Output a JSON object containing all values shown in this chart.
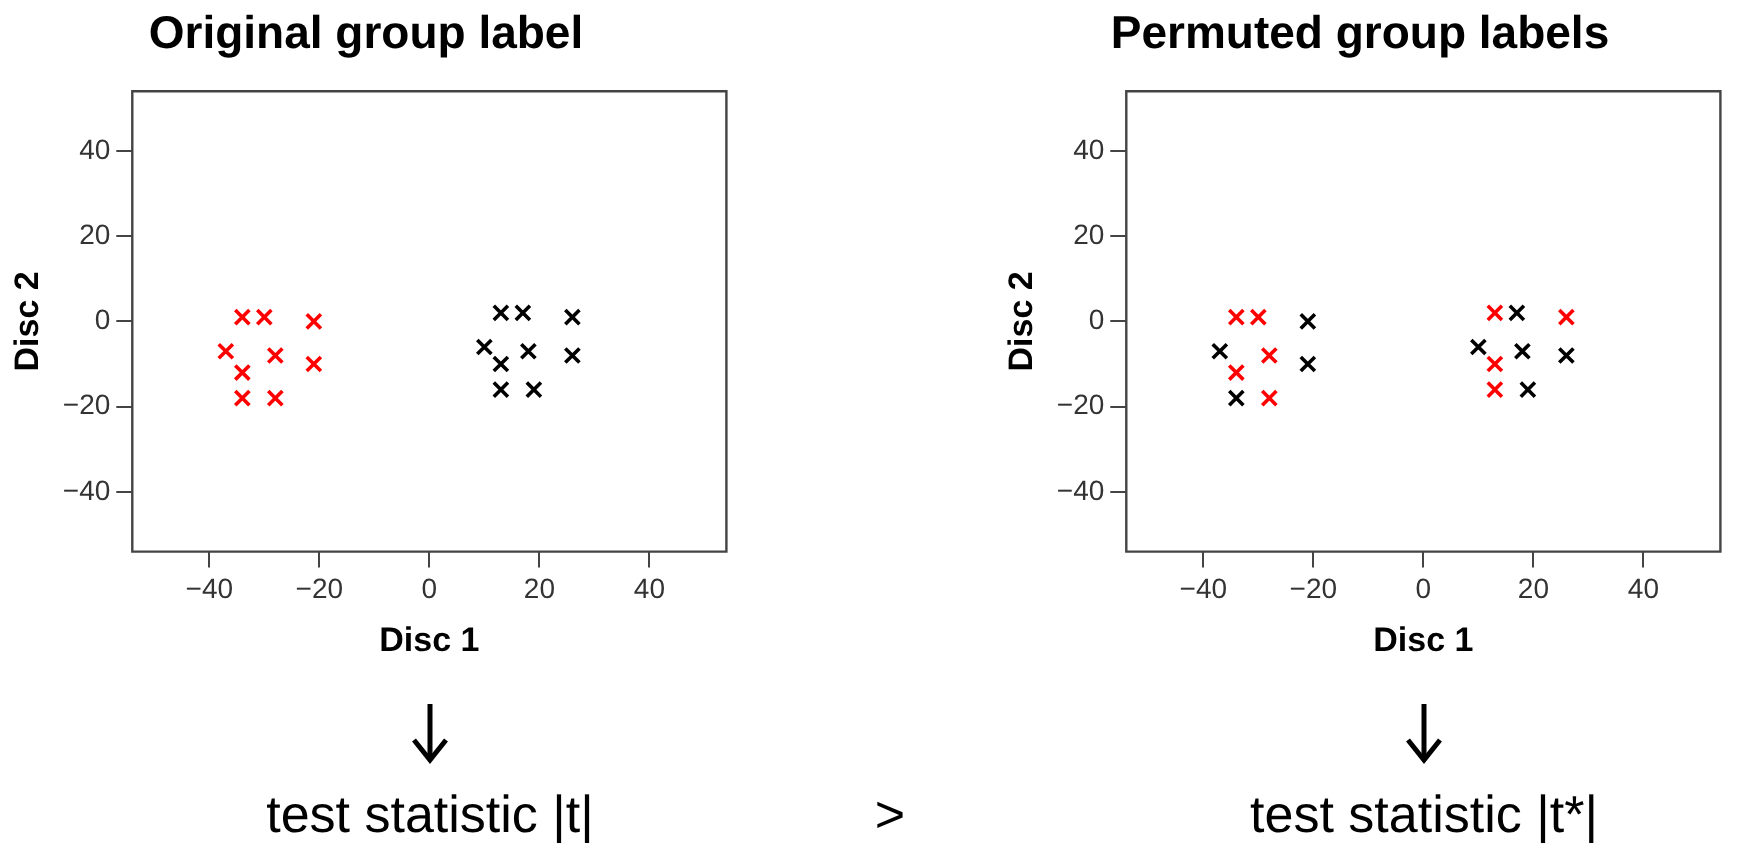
{
  "chart_data": [
    {
      "type": "scatter",
      "title": "Original group label",
      "xlabel": "Disc 1",
      "ylabel": "Disc 2",
      "xlim": [
        -54,
        54
      ],
      "ylim": [
        -54,
        54
      ],
      "xticks": [
        -40,
        -20,
        0,
        20,
        40
      ],
      "yticks": [
        -40,
        -20,
        0,
        20,
        40
      ],
      "marker": "cross",
      "grid": false,
      "legend": false,
      "series": [
        {
          "color": "#ff0000",
          "x": [
            -34,
            -30,
            -21,
            -37,
            -28,
            -21,
            -34,
            -34,
            -28
          ],
          "values": [
            1,
            1,
            0,
            -7,
            -8,
            -10,
            -12,
            -18,
            -18
          ]
        },
        {
          "color": "#000000",
          "x": [
            13,
            17,
            26,
            10,
            18,
            26,
            13,
            13,
            19
          ],
          "values": [
            2,
            2,
            1,
            -6,
            -7,
            -8,
            -10,
            -16,
            -16
          ]
        }
      ],
      "annotations": [
        "test statistic |t|",
        ">"
      ]
    },
    {
      "type": "scatter",
      "title": "Permuted group labels",
      "xlabel": "Disc 1",
      "ylabel": "Disc 2",
      "xlim": [
        -54,
        54
      ],
      "ylim": [
        -54,
        54
      ],
      "xticks": [
        -40,
        -20,
        0,
        20,
        40
      ],
      "yticks": [
        -40,
        -20,
        0,
        20,
        40
      ],
      "marker": "cross",
      "grid": false,
      "legend": false,
      "series": [
        {
          "color": "#ff0000",
          "x": [
            -34,
            -30,
            -28,
            -34,
            -28,
            13,
            26,
            13,
            13
          ],
          "values": [
            1,
            1,
            -8,
            -12,
            -18,
            2,
            1,
            -10,
            -16
          ]
        },
        {
          "color": "#000000",
          "x": [
            -21,
            -37,
            -21,
            -34,
            17,
            10,
            18,
            26,
            19
          ],
          "values": [
            0,
            -7,
            -10,
            -18,
            2,
            -6,
            -7,
            -8,
            -16
          ]
        }
      ],
      "annotations": [
        "test statistic |t*|"
      ]
    }
  ]
}
